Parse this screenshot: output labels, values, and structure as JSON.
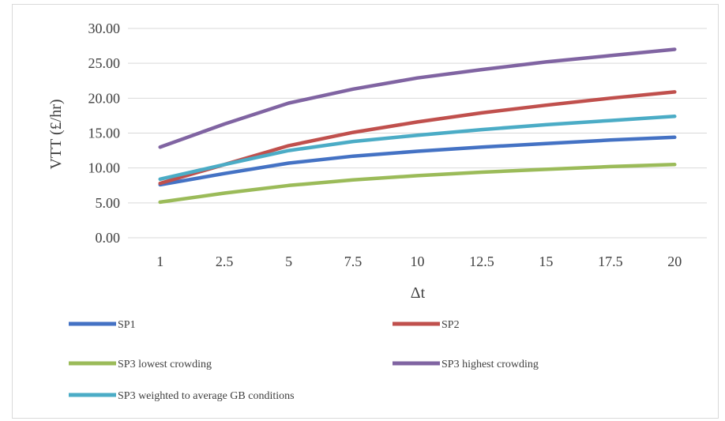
{
  "chart_data": {
    "type": "line",
    "categories": [
      "1",
      "2.5",
      "5",
      "7.5",
      "10",
      "12.5",
      "15",
      "17.5",
      "20"
    ],
    "xlabel": "Δt",
    "ylabel": "VTT (£/hr)",
    "ylim": [
      0,
      30
    ],
    "yticks": [
      "0.00",
      "5.00",
      "10.00",
      "15.00",
      "20.00",
      "25.00",
      "30.00"
    ],
    "grid": true,
    "legend_position": "bottom",
    "series": [
      {
        "name": "SP1",
        "color": "#4472C4",
        "values": [
          7.6,
          9.2,
          10.7,
          11.7,
          12.4,
          13.0,
          13.5,
          14.0,
          14.4
        ]
      },
      {
        "name": "SP2",
        "color": "#C0504D",
        "values": [
          7.8,
          10.5,
          13.2,
          15.1,
          16.6,
          17.9,
          19.0,
          20.0,
          20.9
        ]
      },
      {
        "name": "SP3 lowest crowding",
        "color": "#9BBB59",
        "values": [
          5.1,
          6.4,
          7.5,
          8.3,
          8.9,
          9.4,
          9.8,
          10.2,
          10.5
        ]
      },
      {
        "name": "SP3 highest crowding",
        "color": "#8064A2",
        "values": [
          13.0,
          16.3,
          19.3,
          21.3,
          22.9,
          24.1,
          25.2,
          26.1,
          27.0
        ]
      },
      {
        "name": "SP3 weighted to average GB conditions",
        "color": "#4BACC6",
        "values": [
          8.4,
          10.5,
          12.5,
          13.8,
          14.7,
          15.5,
          16.2,
          16.8,
          17.4
        ]
      }
    ]
  }
}
